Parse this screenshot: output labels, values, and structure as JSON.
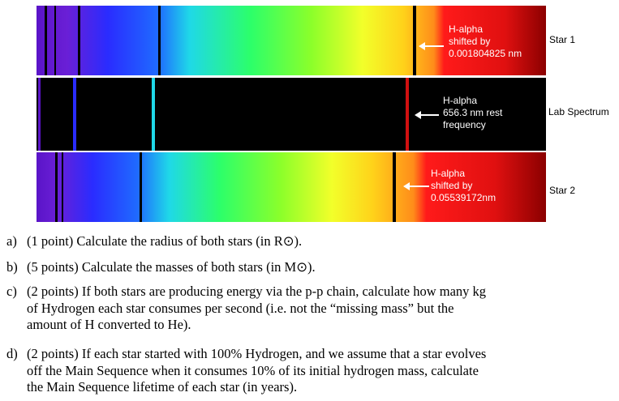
{
  "strips": [
    {
      "label": "Star 1",
      "annotation_lines": [
        "H-alpha",
        "shifted by",
        "0.001804825 nm"
      ]
    },
    {
      "label": "Lab Spectrum",
      "annotation_lines": [
        "H-alpha",
        "656.3 nm rest",
        "frequency"
      ]
    },
    {
      "label": "Star 2",
      "annotation_lines": [
        "H-alpha",
        "shifted by",
        "0.05539172nm"
      ]
    }
  ],
  "questions": [
    {
      "letter": "a)",
      "lines": [
        "(1 point) Calculate the radius of both stars (in R⊙)."
      ]
    },
    {
      "letter": "b)",
      "lines": [
        "(5 points) Calculate the masses of both stars (in M⊙)."
      ]
    },
    {
      "letter": "c)",
      "lines": [
        "(2 points) If both stars are producing energy via the p-p chain, calculate how many kg",
        "of Hydrogen each star consumes per second (i.e. not the “missing mass” but the",
        "amount of H converted to He)."
      ]
    },
    {
      "letter": "d)",
      "lines": [
        "(2 points) If each star started with 100% Hydrogen, and we assume that a star evolves",
        "off the Main Sequence when it consumes 10% of its initial hydrogen mass, calculate",
        "the Main Sequence lifetime of each star (in years)."
      ]
    }
  ],
  "colors": {
    "violet": "#6a1fd6",
    "blue": "#1f3cff",
    "cyan": "#1fe6e0",
    "green": "#2cff3a",
    "yellow": "#f2ff2a",
    "orange": "#ff8c1a",
    "red": "#ff1a1a",
    "dark_red": "#8b0000",
    "absorption_line": "#000000",
    "lab_background": "#000000"
  }
}
